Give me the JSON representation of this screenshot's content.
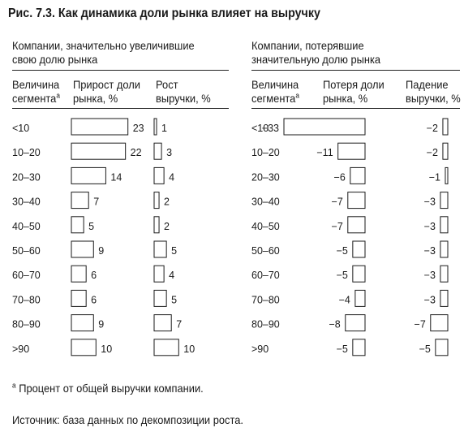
{
  "title": "Рис. 7.3. Как динамика доли рынка влияет на выручку",
  "groups": {
    "left": {
      "title_line1": "Компании, значительно увеличившие",
      "title_line2": "свою долю рынка"
    },
    "right": {
      "title_line1": "Компании, потерявшие",
      "title_line2": "значительную долю рынка"
    }
  },
  "headers": {
    "segment_line1": "Величина",
    "segment_line2": "сегмента",
    "segment_mark": "а",
    "share_gain_line1": "Прирост доли",
    "share_gain_line2": "рынка, %",
    "rev_growth_line1": "Рост",
    "rev_growth_line2": "выручки, %",
    "share_loss_line1": "Потеря доли",
    "share_loss_line2": "рынка, %",
    "rev_decline_line1": "Падение",
    "rev_decline_line2": "выручки, %"
  },
  "chart_data": [
    {
      "type": "bar",
      "panel": "Компании, значительно увеличившие свою долю рынка",
      "categories": [
        "<10",
        "10–20",
        "20–30",
        "30–40",
        "40–50",
        "50–60",
        "60–70",
        "70–80",
        "80–90",
        ">90"
      ],
      "series": [
        {
          "name": "Прирост доли рынка, %",
          "values": [
            23,
            22,
            14,
            7,
            5,
            9,
            6,
            6,
            9,
            10
          ]
        },
        {
          "name": "Рост выручки, %",
          "values": [
            1,
            3,
            4,
            2,
            2,
            5,
            4,
            5,
            7,
            10
          ]
        }
      ]
    },
    {
      "type": "bar",
      "panel": "Компании, потерявшие значительную долю рынка",
      "categories": [
        "<10",
        "10–20",
        "20–30",
        "30–40",
        "40–50",
        "50–60",
        "60–70",
        "70–80",
        "80–90",
        ">90"
      ],
      "series": [
        {
          "name": "Потеря доли рынка, %",
          "values": [
            -33,
            -11,
            -6,
            -7,
            -7,
            -5,
            -5,
            -4,
            -8,
            -5
          ]
        },
        {
          "name": "Падение выручки, %",
          "values": [
            -2,
            -2,
            -1,
            -3,
            -3,
            -3,
            -3,
            -3,
            -7,
            -5
          ]
        }
      ]
    }
  ],
  "footnote_mark": "а",
  "footnote": "Процент от общей выручки компании.",
  "source": "Источник: база данных по декомпозиции роста."
}
